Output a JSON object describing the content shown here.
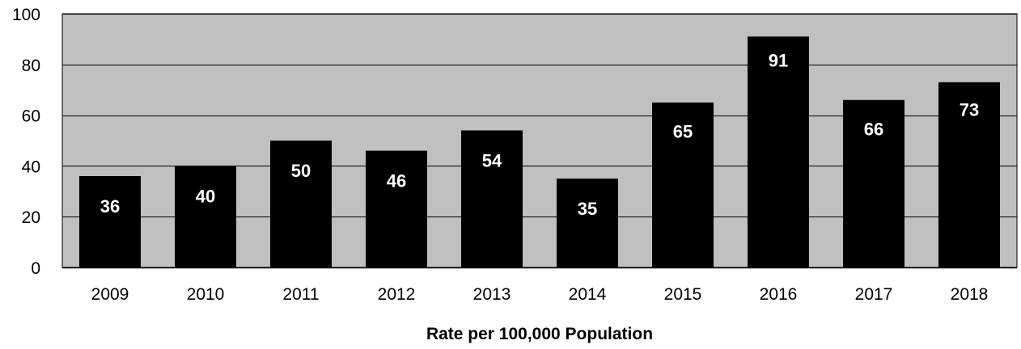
{
  "chart_data": {
    "type": "bar",
    "categories": [
      "2009",
      "2010",
      "2011",
      "2012",
      "2013",
      "2014",
      "2015",
      "2016",
      "2017",
      "2018"
    ],
    "values": [
      36,
      40,
      50,
      46,
      54,
      35,
      65,
      91,
      66,
      73
    ],
    "data_labels": [
      "36",
      "40",
      "50",
      "46",
      "54",
      "35",
      "65",
      "91",
      "66",
      "73"
    ],
    "title": "",
    "xlabel": "Rate per 100,000 Population",
    "ylabel": "",
    "ylim": [
      0,
      100
    ],
    "yticks": [
      0,
      20,
      40,
      60,
      80,
      100
    ],
    "ytick_labels": [
      "0",
      "20",
      "40",
      "60",
      "80",
      "100"
    ],
    "grid": true,
    "legend": "none",
    "colors": {
      "plot_background": "#c0c0c0",
      "bar_fill": "#000000",
      "data_label": "#ffffff",
      "gridline": "#000000"
    }
  }
}
